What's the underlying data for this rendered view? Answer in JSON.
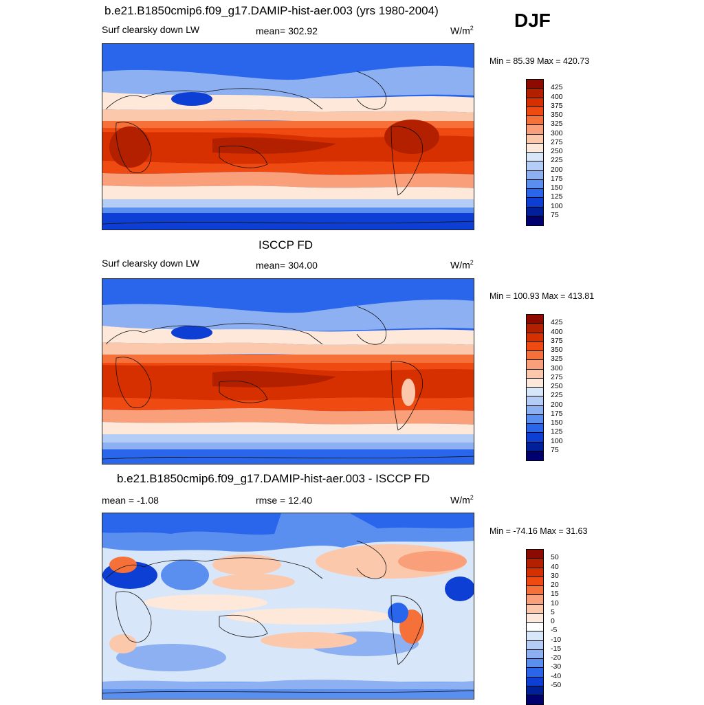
{
  "season": "DJF",
  "panels": [
    {
      "id": "model",
      "title": "b.e21.B1850cmip6.f09_g17.DAMIP-hist-aer.003 (yrs 1980-2004)",
      "left_label": "Surf clearsky down LW",
      "center_label": "mean= 302.92",
      "units_base": "W/m",
      "units_exp": "2",
      "minmax": "Min =  85.39 Max = 420.73",
      "colorbar_labels": [
        "425",
        "400",
        "375",
        "350",
        "325",
        "300",
        "275",
        "250",
        "225",
        "200",
        "175",
        "150",
        "125",
        "100",
        "75"
      ],
      "field": "absolute"
    },
    {
      "id": "obs",
      "title": "ISCCP FD",
      "left_label": "Surf clearsky down LW",
      "center_label": "mean= 304.00",
      "units_base": "W/m",
      "units_exp": "2",
      "minmax": "Min = 100.93 Max = 413.81",
      "colorbar_labels": [
        "425",
        "400",
        "375",
        "350",
        "325",
        "300",
        "275",
        "250",
        "225",
        "200",
        "175",
        "150",
        "125",
        "100",
        "75"
      ],
      "field": "absolute"
    },
    {
      "id": "diff",
      "title": "b.e21.B1850cmip6.f09_g17.DAMIP-hist-aer.003 - ISCCP FD",
      "left_label": "mean =  -1.08",
      "center_label": "rmse =  12.40",
      "units_base": "W/m",
      "units_exp": "2",
      "minmax": "Min = -74.16 Max =  31.63",
      "colorbar_labels": [
        "50",
        "40",
        "30",
        "20",
        "15",
        "10",
        "5",
        "0",
        "-5",
        "-10",
        "-15",
        "-20",
        "-30",
        "-40",
        "-50"
      ],
      "field": "difference"
    }
  ],
  "colors": {
    "absolute": [
      "#8c0a00",
      "#b22000",
      "#d73000",
      "#ee4a12",
      "#f6703a",
      "#f9a07a",
      "#fcc8ac",
      "#fde8da",
      "#d8e6fa",
      "#b4cdf7",
      "#8cb0f2",
      "#5a8ff0",
      "#2a66ec",
      "#0d3fd4",
      "#00209a",
      "#00006e"
    ],
    "difference": [
      "#8c0a00",
      "#b22000",
      "#d73000",
      "#ee4a12",
      "#f6703a",
      "#f9a07a",
      "#fcc8ac",
      "#fde8da",
      "#ffffff",
      "#d8e6fa",
      "#b4cdf7",
      "#8cb0f2",
      "#5a8ff0",
      "#2a66ec",
      "#0d3fd4",
      "#00209a",
      "#00006e"
    ]
  }
}
